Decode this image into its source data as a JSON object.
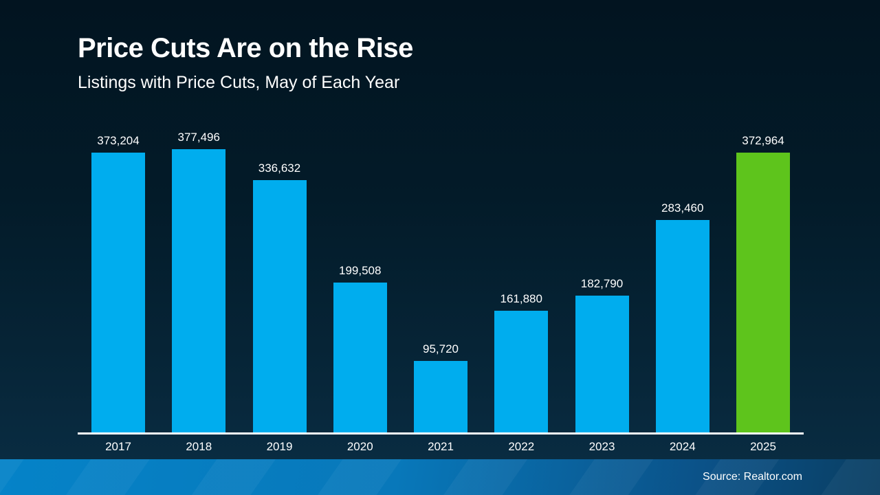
{
  "slide": {
    "title": "Price Cuts Are on the Rise",
    "subtitle": "Listings with Price Cuts, May of Each Year",
    "source": "Source: Realtor.com"
  },
  "colors": {
    "background_top": "#021420",
    "background_bottom": "#0a2e45",
    "bar_blue": "#00ADEE",
    "bar_green": "#5EC41C",
    "axis_line": "#ffffff",
    "text": "#ffffff",
    "footer_left": "#0583c8",
    "footer_right": "#093e62"
  },
  "chart_data": {
    "type": "bar",
    "title": "Price Cuts Are on the Rise",
    "subtitle": "Listings with Price Cuts, May of Each Year",
    "categories": [
      "2017",
      "2018",
      "2019",
      "2020",
      "2021",
      "2022",
      "2023",
      "2024",
      "2025"
    ],
    "values": [
      373204,
      377496,
      336632,
      199508,
      95720,
      161880,
      182790,
      283460,
      372964
    ],
    "value_labels": [
      "373,204",
      "377,496",
      "336,632",
      "199,508",
      "95,720",
      "161,880",
      "182,790",
      "283,460",
      "372,964"
    ],
    "highlight_category": "2025",
    "xlabel": "",
    "ylabel": "",
    "ylim": [
      0,
      400000
    ],
    "grid": false,
    "legend": false,
    "source": "Source: Realtor.com"
  }
}
